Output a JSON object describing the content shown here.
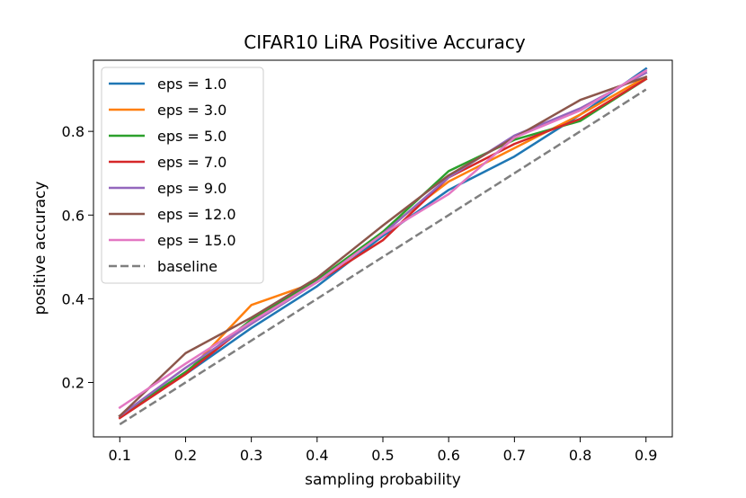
{
  "chart_data": {
    "type": "line",
    "title": "CIFAR10 LiRA Positive Accuracy",
    "xlabel": "sampling probability",
    "ylabel": "positive accuracy",
    "xlim": [
      0.06,
      0.94
    ],
    "ylim": [
      0.07,
      0.97
    ],
    "xticks": [
      0.1,
      0.2,
      0.3,
      0.4,
      0.5,
      0.6,
      0.7,
      0.8,
      0.9
    ],
    "yticks": [
      0.2,
      0.4,
      0.6,
      0.8
    ],
    "xtick_labels": [
      "0.1",
      "0.2",
      "0.3",
      "0.4",
      "0.5",
      "0.6",
      "0.7",
      "0.8",
      "0.9"
    ],
    "ytick_labels": [
      "0.2",
      "0.4",
      "0.6",
      "0.8"
    ],
    "grid": false,
    "legend_position": "upper-left",
    "x": [
      0.1,
      0.2,
      0.3,
      0.4,
      0.5,
      0.6,
      0.7,
      0.8,
      0.9
    ],
    "series": [
      {
        "name": "eps = 1.0",
        "color": "#1f77b4",
        "dash": "solid",
        "values": [
          0.12,
          0.22,
          0.33,
          0.43,
          0.55,
          0.66,
          0.74,
          0.84,
          0.95
        ]
      },
      {
        "name": "eps = 3.0",
        "color": "#ff7f0e",
        "dash": "solid",
        "values": [
          0.12,
          0.22,
          0.385,
          0.44,
          0.56,
          0.68,
          0.76,
          0.84,
          0.93
        ]
      },
      {
        "name": "eps = 5.0",
        "color": "#2ca02c",
        "dash": "solid",
        "values": [
          0.12,
          0.225,
          0.35,
          0.445,
          0.56,
          0.705,
          0.78,
          0.825,
          0.925
        ]
      },
      {
        "name": "eps = 7.0",
        "color": "#d62728",
        "dash": "solid",
        "values": [
          0.115,
          0.22,
          0.345,
          0.44,
          0.54,
          0.69,
          0.77,
          0.83,
          0.925
        ]
      },
      {
        "name": "eps = 9.0",
        "color": "#9467bd",
        "dash": "solid",
        "values": [
          0.12,
          0.235,
          0.34,
          0.44,
          0.555,
          0.69,
          0.79,
          0.855,
          0.94
        ]
      },
      {
        "name": "eps = 12.0",
        "color": "#8c564b",
        "dash": "solid",
        "values": [
          0.12,
          0.27,
          0.355,
          0.45,
          0.575,
          0.695,
          0.785,
          0.875,
          0.93
        ]
      },
      {
        "name": "eps = 15.0",
        "color": "#e377c2",
        "dash": "solid",
        "values": [
          0.14,
          0.245,
          0.345,
          0.44,
          0.555,
          0.65,
          0.785,
          0.85,
          0.945
        ]
      },
      {
        "name": "baseline",
        "color": "#7f7f7f",
        "dash": "dashed",
        "values": [
          0.1,
          0.2,
          0.3,
          0.4,
          0.5,
          0.6,
          0.7,
          0.8,
          0.9
        ]
      }
    ]
  }
}
